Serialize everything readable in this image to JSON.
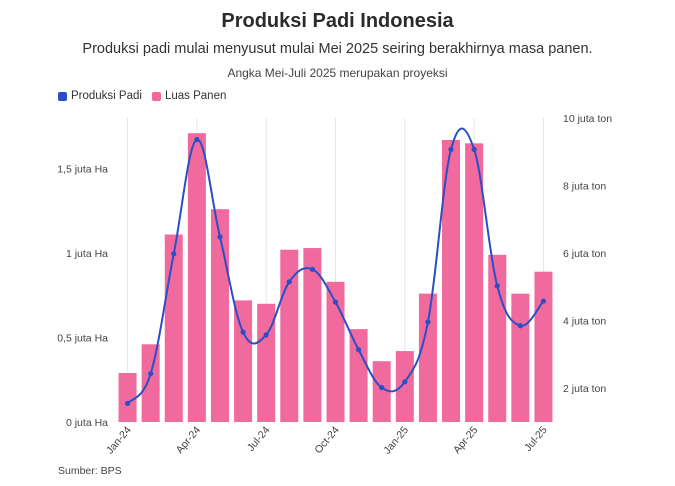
{
  "header": {
    "title": "Produksi Padi Indonesia",
    "subtitle": "Produksi padi mulai menyusut mulai Mei 2025 seiring berakhirnya masa panen.",
    "note": "Angka Mei-Juli 2025 merupakan proyeksi"
  },
  "footer": {
    "source": "Sumber: BPS"
  },
  "chart_data": {
    "type": "bar",
    "title": "Produksi Padi Indonesia",
    "subtitle": "Produksi padi mulai menyusut mulai Mei 2025 seiring berakhirnya masa panen.",
    "annotation": "Angka Mei-Juli 2025 merupakan proyeksi",
    "categories": [
      "Jan-24",
      "Feb-24",
      "Mar-24",
      "Apr-24",
      "May-24",
      "Jun-24",
      "Jul-24",
      "Aug-24",
      "Sep-24",
      "Oct-24",
      "Nov-24",
      "Dec-24",
      "Jan-25",
      "Feb-25",
      "Mar-25",
      "Apr-25",
      "May-25",
      "Jun-25",
      "Jul-25"
    ],
    "x_tick_labels": [
      "Jan-24",
      "Apr-24",
      "Jul-24",
      "Oct-24",
      "Jan-25",
      "Apr-25",
      "Jul-25"
    ],
    "x_tick_indices": [
      0,
      3,
      6,
      9,
      12,
      15,
      18
    ],
    "series": [
      {
        "name": "Luas Panen",
        "type": "bar",
        "axis": "left",
        "color": "#f06a9e",
        "values": [
          0.29,
          0.46,
          1.11,
          1.71,
          1.26,
          0.72,
          0.7,
          1.02,
          1.03,
          0.83,
          0.55,
          0.36,
          0.42,
          0.76,
          1.67,
          1.65,
          0.99,
          0.76,
          0.89
        ]
      },
      {
        "name": "Produksi Padi",
        "type": "line",
        "axis": "right",
        "color": "#2a4fc4",
        "values": [
          1.55,
          2.43,
          5.98,
          9.36,
          6.48,
          3.66,
          3.58,
          5.15,
          5.52,
          4.55,
          3.14,
          2.02,
          2.19,
          3.96,
          9.07,
          9.07,
          5.03,
          3.85,
          4.58
        ]
      }
    ],
    "y_left": {
      "ylim": [
        0,
        1.8
      ],
      "ticks": [
        0,
        0.5,
        1,
        1.5
      ],
      "tick_labels": [
        "0 juta Ha",
        "0,5 juta Ha",
        "1 juta Ha",
        "1,5 juta Ha"
      ]
    },
    "y_right": {
      "ylim": [
        1.0,
        10.0
      ],
      "ticks": [
        2,
        4,
        6,
        8,
        10
      ],
      "tick_labels": [
        "2 juta ton",
        "4 juta ton",
        "6 juta ton",
        "8 juta ton",
        "10 juta ton"
      ]
    },
    "legend": {
      "placement": "top-left",
      "entries": [
        "Produksi Padi",
        "Luas Panen"
      ]
    },
    "grid": "vertical"
  }
}
